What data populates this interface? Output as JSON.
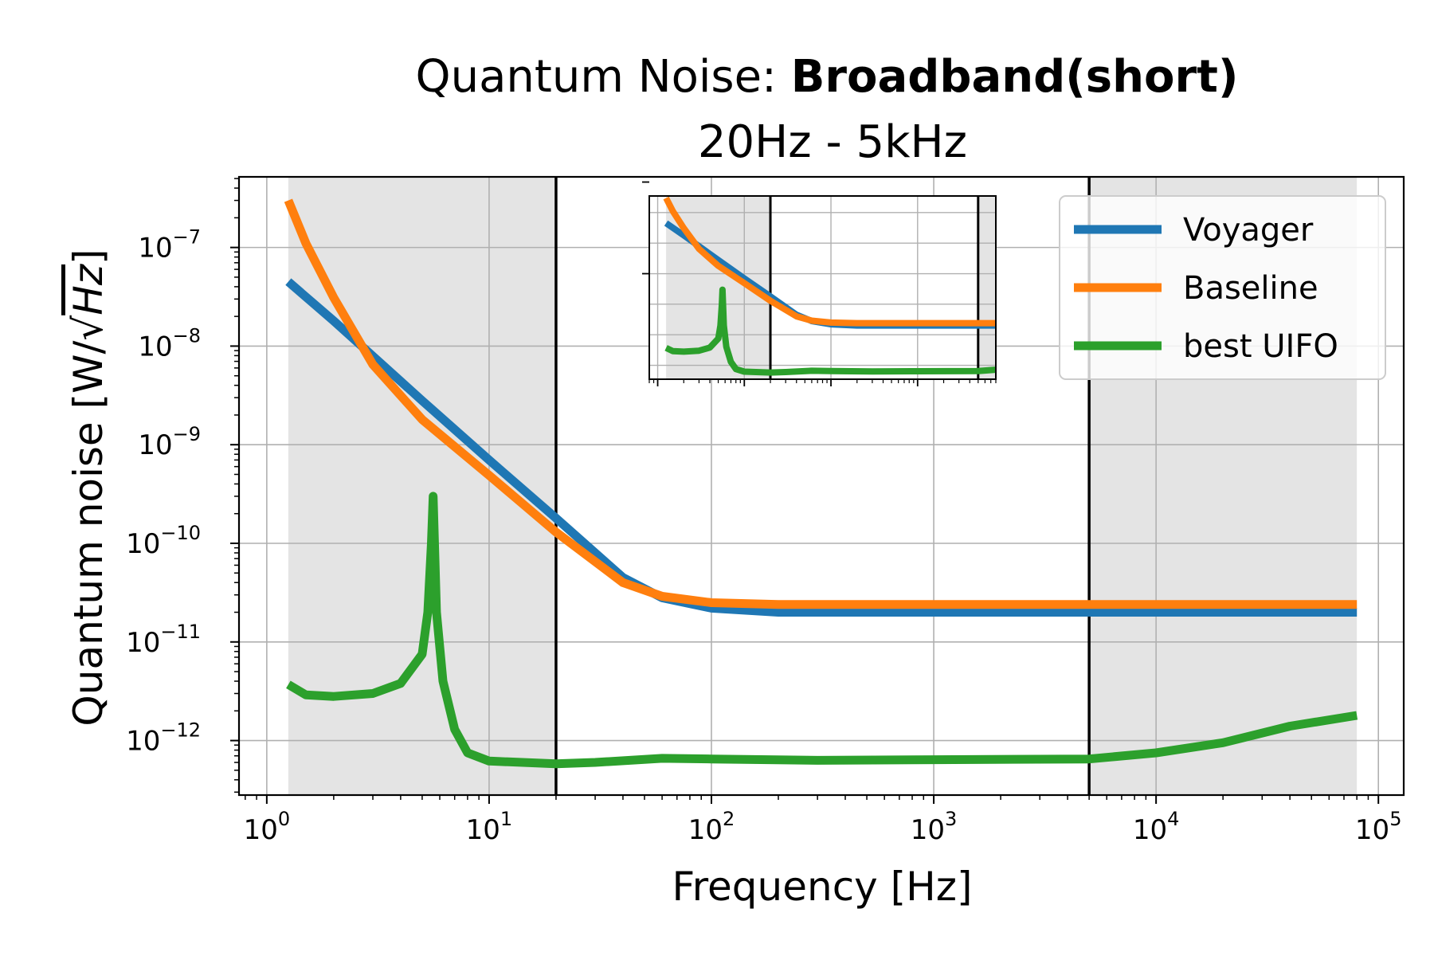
{
  "chart_data": {
    "type": "line",
    "title_prefix": "Quantum Noise: ",
    "title_bold": "Broadband(short)",
    "subtitle": "20Hz - 5kHz",
    "xlabel": "Frequency [Hz]",
    "ylabel_prefix": "Quantum noise [W/",
    "ylabel_sqrt": "Hz",
    "ylabel_suffix": "]",
    "xscale": "log",
    "yscale": "log",
    "xlim": [
      0.75,
      130000
    ],
    "ylim": [
      2.8e-13,
      5.2e-07
    ],
    "x_ticks": [
      {
        "value": 1,
        "label_base": "10",
        "label_exp": "0"
      },
      {
        "value": 10,
        "label_base": "10",
        "label_exp": "1"
      },
      {
        "value": 100,
        "label_base": "10",
        "label_exp": "2"
      },
      {
        "value": 1000,
        "label_base": "10",
        "label_exp": "3"
      },
      {
        "value": 10000,
        "label_base": "10",
        "label_exp": "4"
      },
      {
        "value": 100000,
        "label_base": "10",
        "label_exp": "5"
      }
    ],
    "y_ticks": [
      {
        "value": 1e-12,
        "label_base": "10",
        "label_exp": "−12"
      },
      {
        "value": 1e-11,
        "label_base": "10",
        "label_exp": "−11"
      },
      {
        "value": 1e-10,
        "label_base": "10",
        "label_exp": "−10"
      },
      {
        "value": 1e-09,
        "label_base": "10",
        "label_exp": "−9"
      },
      {
        "value": 1e-08,
        "label_base": "10",
        "label_exp": "−8"
      },
      {
        "value": 1e-07,
        "label_base": "10",
        "label_exp": "−7"
      }
    ],
    "grid": true,
    "legend_position": "top-right",
    "shaded_regions": [
      [
        1.25,
        20
      ],
      [
        5000,
        80000
      ]
    ],
    "vertical_lines": [
      20,
      5000
    ],
    "series": [
      {
        "name": "Voyager",
        "color": "#1f77b4",
        "x": [
          1.25,
          2,
          5,
          10,
          20,
          40,
          60,
          100,
          200,
          500,
          1000,
          5000,
          10000,
          40000,
          80000
        ],
        "y": [
          4.5e-08,
          1.8e-08,
          2.8e-09,
          7e-10,
          1.8e-10,
          4.5e-11,
          2.8e-11,
          2.2e-11,
          2e-11,
          2e-11,
          2e-11,
          2e-11,
          2e-11,
          2e-11,
          2e-11
        ]
      },
      {
        "name": "Baseline",
        "color": "#ff7f0e",
        "x": [
          1.25,
          1.5,
          2,
          3,
          5,
          10,
          20,
          40,
          60,
          100,
          200,
          500,
          1000,
          5000,
          10000,
          40000,
          80000
        ],
        "y": [
          3e-07,
          1.1e-07,
          3.1e-08,
          6.5e-09,
          1.8e-09,
          4.9e-10,
          1.3e-10,
          4e-11,
          2.9e-11,
          2.5e-11,
          2.4e-11,
          2.4e-11,
          2.4e-11,
          2.4e-11,
          2.4e-11,
          2.4e-11,
          2.4e-11
        ]
      },
      {
        "name": "best UIFO",
        "color": "#2ca02c",
        "x": [
          1.25,
          1.5,
          2,
          3,
          4,
          5,
          5.3,
          5.5,
          5.6,
          5.8,
          6.2,
          7,
          8,
          10,
          20,
          30,
          60,
          100,
          300,
          1000,
          5000,
          10000,
          20000,
          40000,
          80000
        ],
        "y": [
          3.7e-12,
          2.9e-12,
          2.8e-12,
          3e-12,
          3.8e-12,
          7.5e-12,
          2e-11,
          1e-10,
          3e-10,
          2e-11,
          4e-12,
          1.3e-12,
          7.5e-13,
          6.2e-13,
          5.8e-13,
          6e-13,
          6.6e-13,
          6.5e-13,
          6.3e-13,
          6.4e-13,
          6.5e-13,
          7.5e-13,
          9.5e-13,
          1.4e-12,
          1.8e-12
        ]
      }
    ],
    "inset": {
      "x_axis": "log",
      "y_axis": "log",
      "shaded_regions": [
        [
          1.25,
          20
        ],
        [
          5000,
          80000
        ]
      ],
      "vertical_lines": [
        20,
        5000
      ]
    }
  }
}
